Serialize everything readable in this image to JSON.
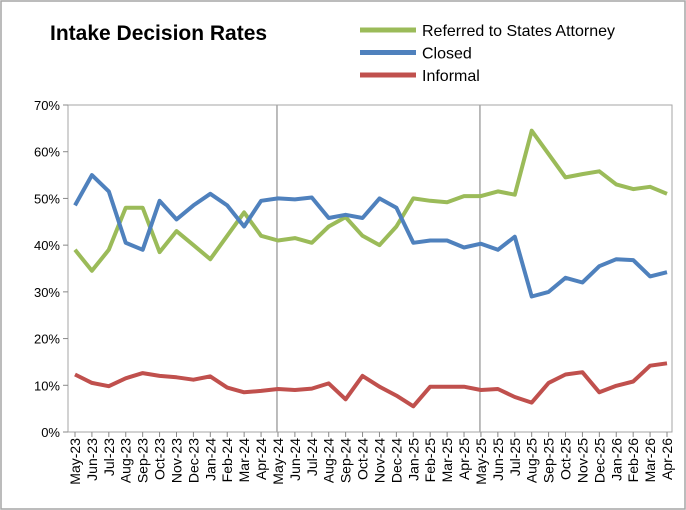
{
  "chart_data": {
    "type": "line",
    "title": "Intake Decision Rates",
    "categories": [
      "May-23",
      "Jun-23",
      "Jul-23",
      "Aug-23",
      "Sep-23",
      "Oct-23",
      "Nov-23",
      "Dec-23",
      "Jan-24",
      "Feb-24",
      "Mar-24",
      "Apr-24",
      "May-24",
      "Jun-24",
      "Jul-24",
      "Aug-24",
      "Sep-24",
      "Oct-24",
      "Nov-24",
      "Dec-24",
      "Jan-25",
      "Feb-25",
      "Mar-25",
      "Apr-25",
      "May-25",
      "Jun-25",
      "Jul-25",
      "Aug-25",
      "Sep-25",
      "Oct-25",
      "Nov-25",
      "Dec-25",
      "Jan-26",
      "Feb-26",
      "Mar-26",
      "Apr-26"
    ],
    "series": [
      {
        "name": "Referred to States Attorney",
        "color": "#9bbb59",
        "values": [
          39,
          34.5,
          39,
          48,
          48,
          38.5,
          43,
          40,
          37,
          42,
          47,
          42,
          41,
          41.5,
          40.5,
          44,
          46,
          42,
          40,
          44,
          50,
          49.5,
          49.2,
          50.5,
          50.5,
          51.5,
          50.8,
          64.5,
          59.5,
          54.5,
          55.2,
          55.8,
          53,
          52,
          52.5,
          51
        ]
      },
      {
        "name": "Closed",
        "color": "#4f81bd",
        "values": [
          48.5,
          55,
          51.5,
          40.5,
          39,
          49.5,
          45.5,
          48.5,
          51,
          48.5,
          44,
          49.5,
          50,
          49.8,
          50.2,
          45.8,
          46.5,
          45.8,
          50,
          48,
          40.5,
          41,
          41,
          39.5,
          40.3,
          39,
          41.8,
          29,
          30,
          33,
          32,
          35.5,
          37,
          36.8,
          33.3,
          34.2
        ]
      },
      {
        "name": "Informal",
        "color": "#c0504d",
        "values": [
          12.3,
          10.5,
          9.8,
          11.5,
          12.6,
          12,
          11.7,
          11.2,
          11.9,
          9.5,
          8.5,
          8.8,
          9.2,
          9,
          9.3,
          10.4,
          7,
          12,
          9.7,
          7.8,
          5.5,
          9.7,
          9.7,
          9.7,
          9,
          9.2,
          7.5,
          6.3,
          10.5,
          12.3,
          12.8,
          8.5,
          9.9,
          10.8,
          14.2,
          14.7
        ]
      }
    ],
    "ylim": [
      0,
      70
    ],
    "yticks": [
      {
        "value": 0,
        "label": "0%"
      },
      {
        "value": 10,
        "label": "10%"
      },
      {
        "value": 20,
        "label": "20%"
      },
      {
        "value": 30,
        "label": "30%"
      },
      {
        "value": 40,
        "label": "40%"
      },
      {
        "value": 50,
        "label": "50%"
      },
      {
        "value": 60,
        "label": "60%"
      },
      {
        "value": 70,
        "label": "70%"
      }
    ]
  }
}
